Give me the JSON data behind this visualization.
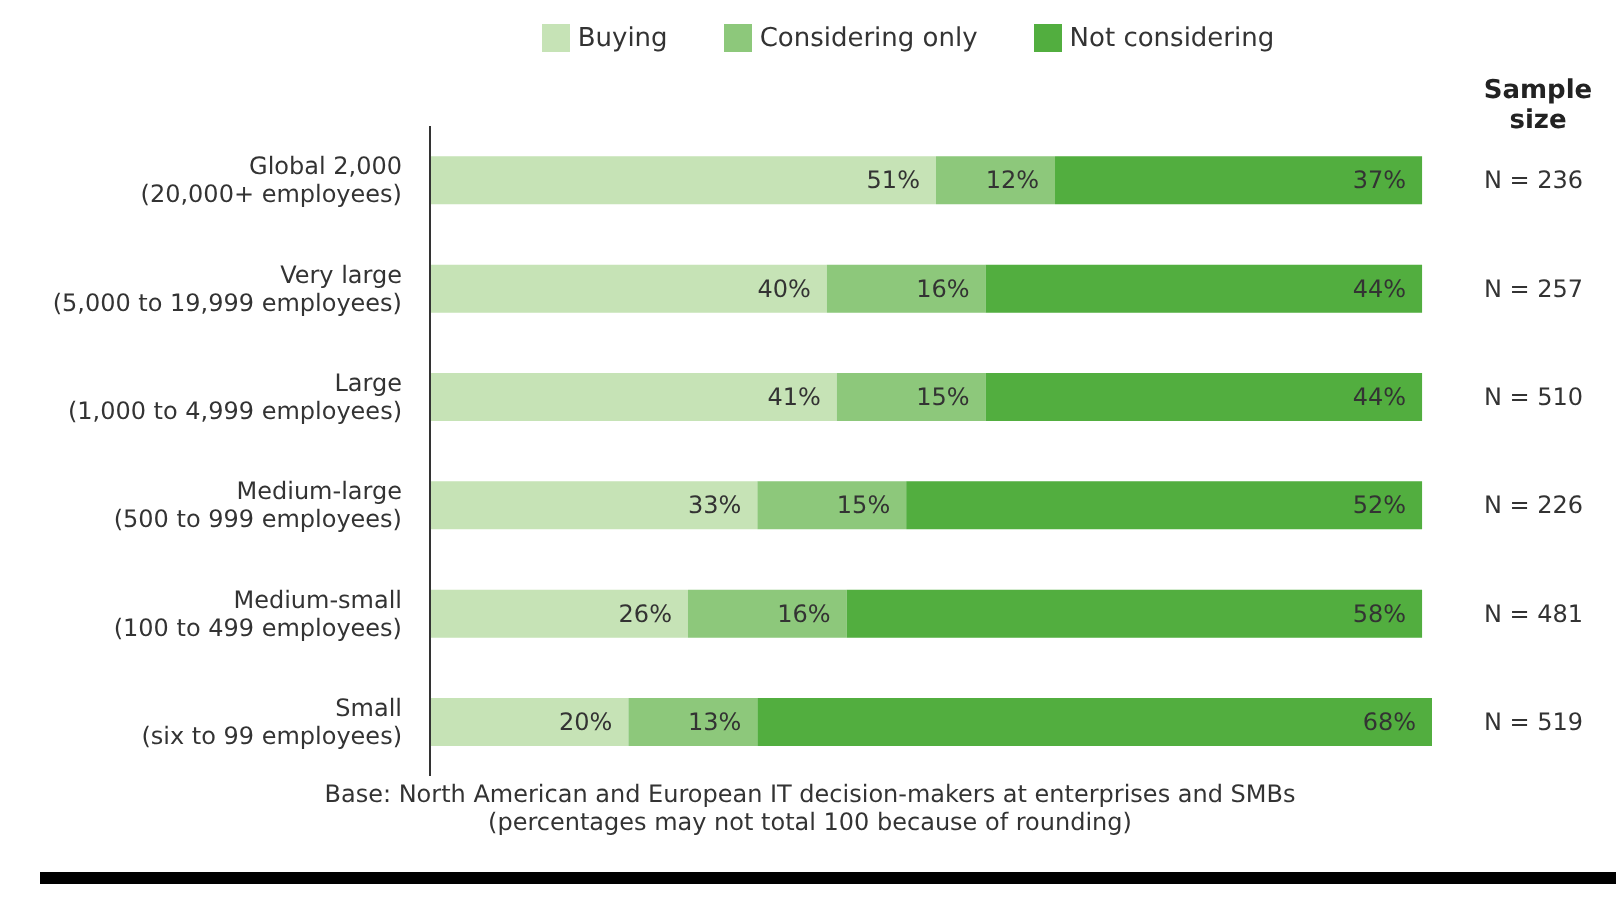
{
  "chart_data": {
    "type": "bar",
    "orientation": "horizontal",
    "stacked": true,
    "categories": [
      "Global 2,000\n(20,000+ employees)",
      "Very large\n(5,000 to 19,999 employees)",
      "Large\n(1,000 to 4,999 employees)",
      "Medium-large\n(500 to 999 employees)",
      "Medium-small\n(100 to 499 employees)",
      "Small\n(six to 99 employees)"
    ],
    "series": [
      {
        "name": "Buying",
        "color": "#c6e3b6",
        "values": [
          51,
          40,
          41,
          33,
          26,
          20
        ],
        "value_labels": [
          "51%",
          "40%",
          "41%",
          "33%",
          "26%",
          "20%"
        ]
      },
      {
        "name": "Considering only",
        "color": "#8dc87b",
        "values": [
          12,
          16,
          15,
          15,
          16,
          13
        ],
        "value_labels": [
          "12%",
          "16%",
          "15%",
          "15%",
          "16%",
          "13%"
        ]
      },
      {
        "name": "Not considering",
        "color": "#52ae3f",
        "values": [
          37,
          44,
          44,
          52,
          58,
          68
        ],
        "value_labels": [
          "37%",
          "44%",
          "44%",
          "52%",
          "58%",
          "68%"
        ]
      }
    ],
    "xlim": [
      0,
      101
    ],
    "tick_labels": "y",
    "legend": "top",
    "grid": false,
    "y2label": "Sample size",
    "annotations": [
      "N = 236",
      "N = 257",
      "N = 510",
      "N = 226",
      "N = 481",
      "N = 519",
      "Base: North American and European IT decision-makers at enterprises and SMBs",
      "(percentages may not total 100 because of rounding)"
    ]
  }
}
